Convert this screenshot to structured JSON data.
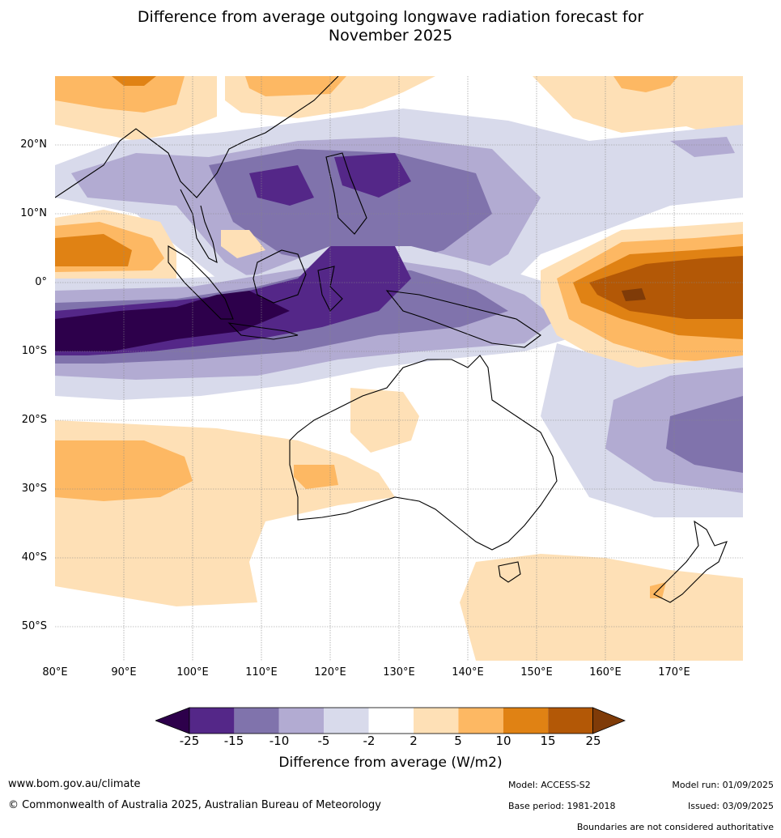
{
  "title_line1": "Difference from average outgoing longwave radiation forecast for",
  "title_line2": "November 2025",
  "lat_labels": [
    "20°N",
    "10°N",
    "0°",
    "10°S",
    "20°S",
    "30°S",
    "40°S",
    "50°S"
  ],
  "lon_labels": [
    "80°E",
    "90°E",
    "100°E",
    "110°E",
    "120°E",
    "130°E",
    "140°E",
    "150°E",
    "160°E",
    "170°E"
  ],
  "colorbar": {
    "label": "Difference from average (W/m2)",
    "ticks": [
      "-25",
      "-15",
      "-10",
      "-5",
      "-2",
      "2",
      "5",
      "10",
      "15",
      "25"
    ],
    "colors": [
      "#2d004b",
      "#542788",
      "#8073ac",
      "#b2abd2",
      "#d8daeb",
      "#ffffff",
      "#fee0b6",
      "#fdb863",
      "#e08214",
      "#b35806",
      "#7f3b08"
    ]
  },
  "footer": {
    "website": "www.bom.gov.au/climate",
    "copyright": "© Commonwealth of Australia 2025, Australian Bureau of Meteorology",
    "model": "Model: ACCESS-S2",
    "base_period": "Base period: 1981-2018",
    "model_run": "Model run: 01/09/2025",
    "issued": "Issued: 03/09/2025",
    "disclaimer": "Boundaries are not considered authoritative"
  }
}
